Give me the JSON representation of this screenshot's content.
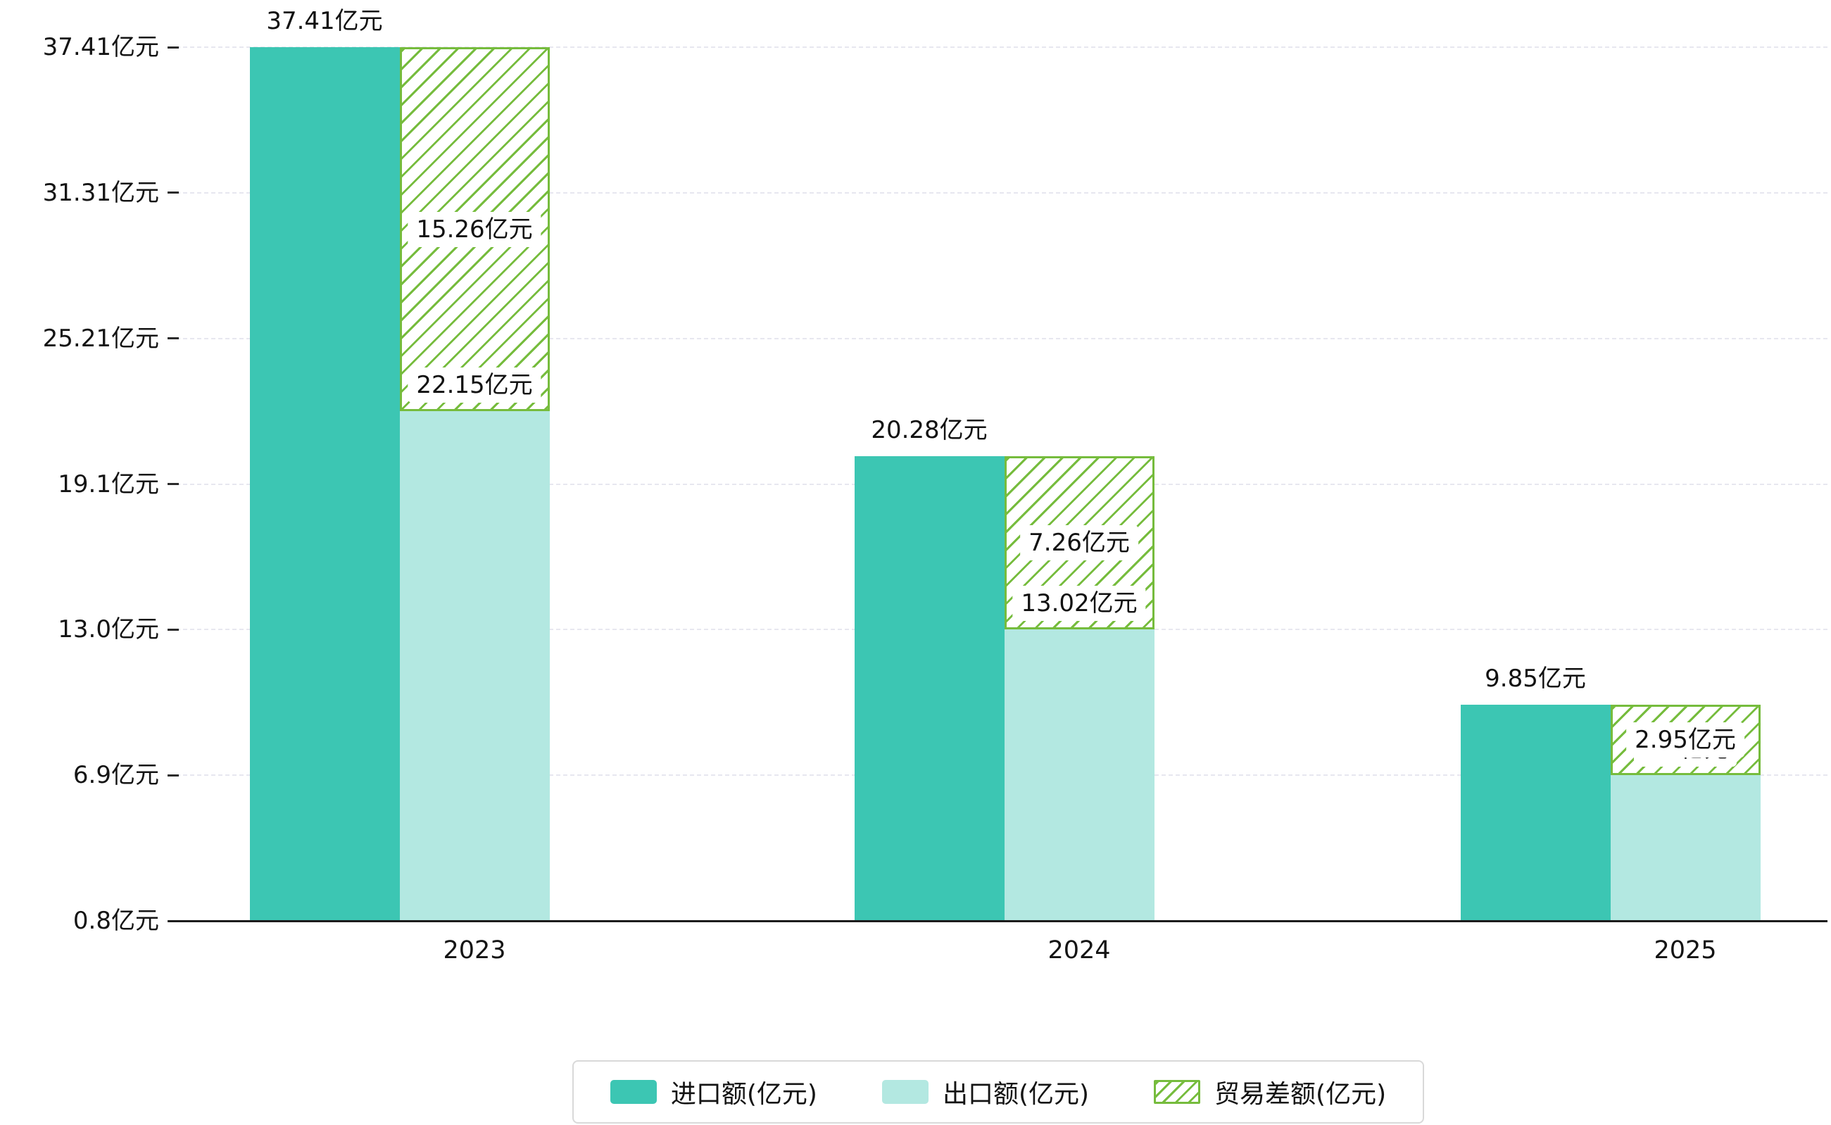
{
  "chart_data": {
    "type": "bar",
    "title": "",
    "categories": [
      "2023",
      "2024",
      "2025"
    ],
    "series": [
      {
        "name": "进口额(亿元)",
        "values": [
          37.41,
          20.28,
          9.85
        ],
        "labels": [
          "37.41亿元",
          "20.28亿元",
          "9.85亿元"
        ],
        "color": "#3cc6b3",
        "style": "solid"
      },
      {
        "name": "出口额(亿元)",
        "values": [
          22.15,
          13.02,
          6.9
        ],
        "labels": [
          "22.15亿元",
          "13.02亿元",
          "6.9亿元"
        ],
        "color": "#b3e8e1",
        "style": "solid"
      },
      {
        "name": "贸易差额(亿元)",
        "values": [
          15.26,
          7.26,
          2.95
        ],
        "labels": [
          "15.26亿元",
          "7.26亿元",
          "2.95亿元"
        ],
        "color": "#76bc3d",
        "style": "hatch"
      }
    ],
    "y_ticks": [
      0.8,
      6.9,
      13.0,
      19.1,
      25.21,
      31.31,
      37.41
    ],
    "y_tick_labels": [
      "0.8亿元",
      "6.9亿元",
      "13.0亿元",
      "19.1亿元",
      "25.21亿元",
      "31.31亿元",
      "37.41亿元"
    ],
    "ylim": [
      0.8,
      37.41
    ],
    "unit": "亿元",
    "grid": "dashed-horizontal",
    "legend_position": "bottom"
  },
  "colors": {
    "import_bar": "#3cc6b3",
    "export_bar": "#b3e8e1",
    "diff_hatch": "#76bc3d",
    "axis": "#1c1c1c",
    "gridline": "#e7e7ef",
    "background": "#ffffff"
  },
  "legend": {
    "items": [
      {
        "label": "进口额(亿元)",
        "swatch": "import"
      },
      {
        "label": "出口额(亿元)",
        "swatch": "export"
      },
      {
        "label": "贸易差额(亿元)",
        "swatch": "diff"
      }
    ]
  }
}
